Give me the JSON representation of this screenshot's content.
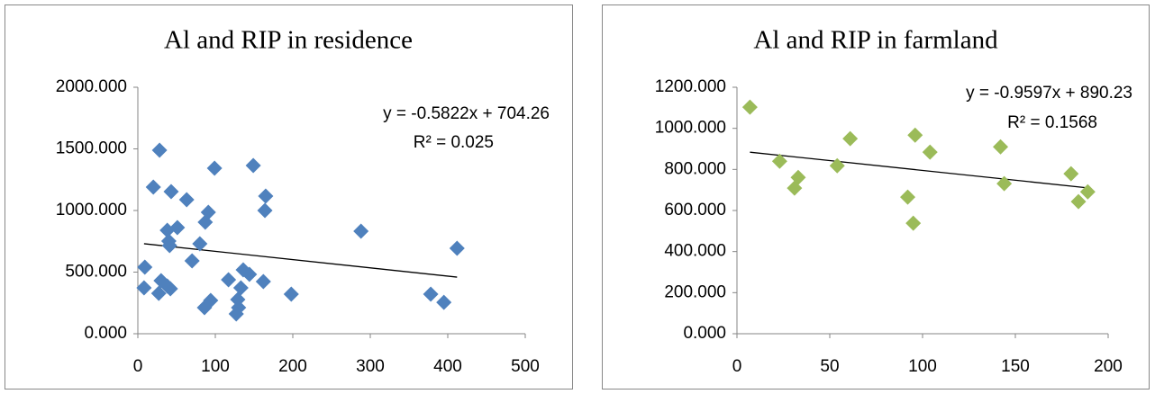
{
  "chart_data": [
    {
      "type": "scatter",
      "title": "Al and RIP in residence",
      "color": "#4f81bd",
      "marker": "diamond",
      "x": [
        28,
        20,
        43,
        63,
        99,
        149,
        165,
        164,
        91,
        87,
        51,
        38,
        40,
        41,
        80,
        70,
        9,
        288,
        412,
        8,
        30,
        38,
        42,
        27,
        117,
        136,
        144,
        162,
        133,
        129,
        94,
        86,
        130,
        127,
        198,
        378,
        395
      ],
      "y": [
        1489,
        1190,
        1153,
        1088,
        1343,
        1365,
        1117,
        1000,
        985,
        905,
        861,
        839,
        752,
        715,
        730,
        591,
        540,
        832,
        693,
        372,
        431,
        387,
        365,
        328,
        438,
        518,
        482,
        423,
        372,
        277,
        270,
        212,
        212,
        161,
        321,
        321,
        255
      ],
      "xlim": [
        0,
        500
      ],
      "xticks": [
        0,
        100,
        200,
        300,
        400,
        500
      ],
      "ylim": [
        0,
        2000
      ],
      "yticks": [
        {
          "value": 0,
          "label": "0.000"
        },
        {
          "value": 500,
          "label": "500.000"
        },
        {
          "value": 1000,
          "label": "1000.000"
        },
        {
          "value": 1500,
          "label": "1500.000"
        },
        {
          "value": 2000,
          "label": "2000.000"
        }
      ],
      "trendline": {
        "equation": "y = -0.5822x + 704.26",
        "r_squared": "R² = 0.025"
      }
    },
    {
      "type": "scatter",
      "title": "Al and RIP in farmland",
      "color": "#9bbb59",
      "marker": "diamond",
      "x": [
        7,
        23,
        33,
        31,
        54,
        61,
        96,
        104,
        92,
        95,
        142,
        144,
        180,
        184,
        189
      ],
      "y": [
        1103,
        840,
        761,
        709,
        818,
        950,
        967,
        884,
        665,
        538,
        910,
        731,
        779,
        643,
        691
      ],
      "xlim": [
        0,
        200
      ],
      "xticks": [
        0,
        50,
        100,
        150,
        200
      ],
      "ylim": [
        0,
        1200
      ],
      "yticks": [
        {
          "value": 0,
          "label": "0.000"
        },
        {
          "value": 200,
          "label": "200.000"
        },
        {
          "value": 400,
          "label": "400.000"
        },
        {
          "value": 600,
          "label": "600.000"
        },
        {
          "value": 800,
          "label": "800.000"
        },
        {
          "value": 1000,
          "label": "1000.000"
        },
        {
          "value": 1200,
          "label": "1200.000"
        }
      ],
      "trendline": {
        "equation": "y = -0.9597x + 890.23",
        "r_squared": "R² = 0.1568"
      }
    }
  ]
}
